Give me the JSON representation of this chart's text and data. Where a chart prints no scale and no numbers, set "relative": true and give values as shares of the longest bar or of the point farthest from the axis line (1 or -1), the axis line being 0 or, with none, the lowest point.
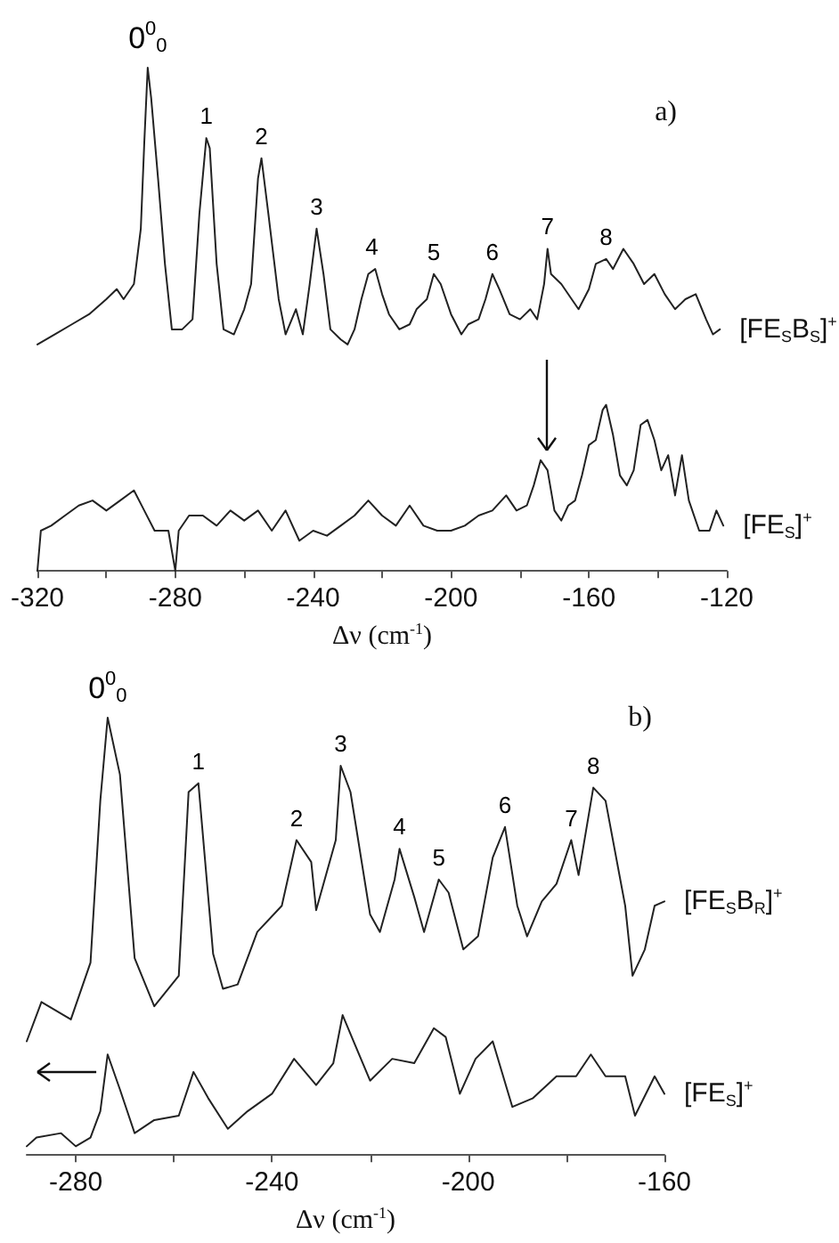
{
  "chart_data": [
    {
      "type": "line",
      "title": "a)",
      "xlabel": "Δν (cm$^{-1}$)",
      "relative": true,
      "marker": "none",
      "xlim": [
        -320,
        -120
      ],
      "xticks": [
        -320,
        {
          "value": -300,
          "label": null
        },
        -280,
        {
          "value": -260,
          "label": null
        },
        -240,
        {
          "value": -220,
          "label": null
        },
        -200,
        {
          "value": -180,
          "label": null
        },
        -160,
        {
          "value": -140,
          "label": null
        },
        -120
      ],
      "annotations": [
        {
          "text": "0$^{0}$$_{0}$",
          "x": -288,
          "y": 1.0
        },
        {
          "text": "1",
          "x": -271,
          "y": 0.86
        },
        {
          "text": "2",
          "x": -255,
          "y": 0.82
        },
        {
          "text": "3",
          "x": -239,
          "y": 0.68
        },
        {
          "text": "4",
          "x": -223,
          "y": 0.6
        },
        {
          "text": "5",
          "x": -205,
          "y": 0.59
        },
        {
          "text": "6",
          "x": -188,
          "y": 0.59
        },
        {
          "text": "7",
          "x": -172,
          "y": 0.64
        },
        {
          "text": "8",
          "x": -155,
          "y": 0.62
        }
      ],
      "series": [
        {
          "name": "[FE$_{S}$B$_{S}$]$^{+}$",
          "color": "#222222",
          "x": [
            -320,
            -315,
            -310,
            -305,
            -300,
            -297,
            -295,
            -292,
            -290,
            -289,
            -288,
            -287,
            -285,
            -283,
            -281,
            -278,
            -275,
            -273,
            -271,
            -270,
            -268,
            -266,
            -263,
            -260,
            -258,
            -256,
            -255,
            -253,
            -250,
            -248,
            -245,
            -243,
            -241,
            -239,
            -237,
            -235,
            -232,
            -230,
            -228,
            -226,
            -224,
            -222,
            -220,
            -218,
            -215,
            -212,
            -210,
            -207,
            -205,
            -203,
            -200,
            -197,
            -195,
            -192,
            -190,
            -188,
            -186,
            -183,
            -180,
            -177,
            -175,
            -173,
            -172,
            -171,
            -168,
            -165,
            -163,
            -160,
            -158,
            -155,
            -153,
            -150,
            -147,
            -144,
            -141,
            -138,
            -135,
            -132,
            -129,
            -126,
            -124,
            -122
          ],
          "values": [
            0.45,
            0.47,
            0.49,
            0.51,
            0.54,
            0.56,
            0.54,
            0.57,
            0.68,
            0.85,
            1.0,
            0.94,
            0.78,
            0.61,
            0.48,
            0.48,
            0.5,
            0.71,
            0.86,
            0.84,
            0.61,
            0.48,
            0.47,
            0.52,
            0.57,
            0.78,
            0.82,
            0.71,
            0.54,
            0.47,
            0.52,
            0.47,
            0.57,
            0.68,
            0.59,
            0.48,
            0.46,
            0.45,
            0.48,
            0.54,
            0.59,
            0.6,
            0.55,
            0.51,
            0.48,
            0.49,
            0.52,
            0.54,
            0.59,
            0.57,
            0.51,
            0.47,
            0.49,
            0.5,
            0.54,
            0.59,
            0.56,
            0.51,
            0.5,
            0.52,
            0.5,
            0.57,
            0.64,
            0.59,
            0.57,
            0.54,
            0.52,
            0.56,
            0.61,
            0.62,
            0.6,
            0.64,
            0.61,
            0.57,
            0.59,
            0.55,
            0.52,
            0.54,
            0.55,
            0.5,
            0.47,
            0.48
          ]
        },
        {
          "name": "[FE$_{S}$]$^{+}$",
          "color": "#222222",
          "x": [
            -320,
            -319,
            -316,
            -312,
            -308,
            -304,
            -300,
            -296,
            -292,
            -289,
            -286,
            -282,
            -280,
            -279,
            -276,
            -272,
            -268,
            -264,
            -260,
            -256,
            -252,
            -248,
            -244,
            -240,
            -236,
            -232,
            -228,
            -224,
            -220,
            -216,
            -212,
            -208,
            -204,
            -200,
            -196,
            -192,
            -188,
            -184,
            -181,
            -178,
            -176,
            -174,
            -172,
            -170,
            -168,
            -166,
            -164,
            -162,
            -160,
            -158,
            -156,
            -155,
            -153,
            -151,
            -149,
            -147,
            -145,
            -143,
            -141,
            -139,
            -137,
            -135,
            -133,
            -131,
            -128,
            -125,
            -123,
            -121
          ],
          "values": [
            0,
            0.08,
            0.09,
            0.11,
            0.13,
            0.14,
            0.12,
            0.14,
            0.16,
            0.12,
            0.08,
            0.08,
            0,
            0.08,
            0.11,
            0.11,
            0.09,
            0.12,
            0.1,
            0.12,
            0.08,
            0.12,
            0.06,
            0.08,
            0.07,
            0.09,
            0.11,
            0.14,
            0.11,
            0.09,
            0.13,
            0.09,
            0.08,
            0.08,
            0.09,
            0.11,
            0.12,
            0.15,
            0.12,
            0.13,
            0.17,
            0.22,
            0.2,
            0.12,
            0.1,
            0.13,
            0.14,
            0.19,
            0.25,
            0.26,
            0.32,
            0.33,
            0.27,
            0.19,
            0.17,
            0.2,
            0.29,
            0.3,
            0.26,
            0.2,
            0.23,
            0.15,
            0.23,
            0.14,
            0.08,
            0.08,
            0.12,
            0.09
          ]
        }
      ]
    },
    {
      "type": "line",
      "title": "b)",
      "xlabel": "Δν (cm$^{-1}$)",
      "relative": true,
      "marker": "none",
      "xlim": [
        -290,
        -160
      ],
      "xticks": [
        -280,
        {
          "value": -260,
          "label": null
        },
        -240,
        {
          "value": -220,
          "label": null
        },
        -200,
        {
          "value": -180,
          "label": null
        },
        -160
      ],
      "annotations": [
        {
          "text": "0$^{0}$$_{0}$",
          "x": -273.5,
          "y": 1.0
        },
        {
          "text": "1",
          "x": -255,
          "y": 0.85
        },
        {
          "text": "2",
          "x": -235,
          "y": 0.72
        },
        {
          "text": "3",
          "x": -226,
          "y": 0.89
        },
        {
          "text": "4",
          "x": -214,
          "y": 0.7
        },
        {
          "text": "5",
          "x": -206,
          "y": 0.63
        },
        {
          "text": "6",
          "x": -192.5,
          "y": 0.75
        },
        {
          "text": "7",
          "x": -179,
          "y": 0.72
        },
        {
          "text": "8",
          "x": -174.5,
          "y": 0.84
        }
      ],
      "series": [
        {
          "name": "[FE$_{S}$B$_{R}$]$^{+}$",
          "color": "#222222",
          "x": [
            -290,
            -287,
            -281,
            -277,
            -275,
            -273.5,
            -271,
            -268,
            -264,
            -259,
            -257,
            -255,
            -252,
            -250,
            -247,
            -243,
            -238,
            -235,
            -232,
            -231,
            -227,
            -226,
            -224,
            -220,
            -218,
            -215,
            -214,
            -211,
            -209,
            -206,
            -204,
            -201,
            -198,
            -195,
            -192.5,
            -190,
            -188,
            -185,
            -182,
            -179,
            -177.5,
            -174.5,
            -172,
            -168,
            -166.5,
            -164,
            -162,
            -160
          ],
          "values": [
            0.26,
            0.35,
            0.31,
            0.44,
            0.81,
            1.0,
            0.87,
            0.45,
            0.34,
            0.41,
            0.83,
            0.85,
            0.46,
            0.38,
            0.39,
            0.51,
            0.57,
            0.72,
            0.67,
            0.56,
            0.72,
            0.89,
            0.83,
            0.55,
            0.51,
            0.63,
            0.7,
            0.59,
            0.51,
            0.63,
            0.6,
            0.47,
            0.5,
            0.68,
            0.75,
            0.57,
            0.5,
            0.58,
            0.62,
            0.72,
            0.64,
            0.84,
            0.81,
            0.57,
            0.41,
            0.47,
            0.57,
            0.58
          ]
        },
        {
          "name": "[FE$_{S}$]$^{+}$",
          "color": "#222222",
          "x": [
            -290,
            -288,
            -283,
            -280,
            -277,
            -275,
            -273.5,
            -271,
            -268,
            -264,
            -259,
            -256,
            -253,
            -249,
            -245,
            -240,
            -235.5,
            -231,
            -227.5,
            -225.6,
            -223,
            -220,
            -215.5,
            -211,
            -207,
            -204.6,
            -201.7,
            -198.5,
            -195,
            -191,
            -186.8,
            -182,
            -178,
            -175,
            -172,
            -168,
            -166,
            -162,
            -160
          ],
          "values": [
            0.02,
            0.04,
            0.05,
            0.02,
            0.04,
            0.1,
            0.23,
            0.15,
            0.05,
            0.08,
            0.09,
            0.19,
            0.13,
            0.06,
            0.1,
            0.14,
            0.22,
            0.16,
            0.21,
            0.32,
            0.25,
            0.17,
            0.22,
            0.21,
            0.29,
            0.27,
            0.14,
            0.22,
            0.26,
            0.11,
            0.13,
            0.18,
            0.18,
            0.23,
            0.18,
            0.18,
            0.09,
            0.18,
            0.14
          ]
        }
      ]
    }
  ]
}
